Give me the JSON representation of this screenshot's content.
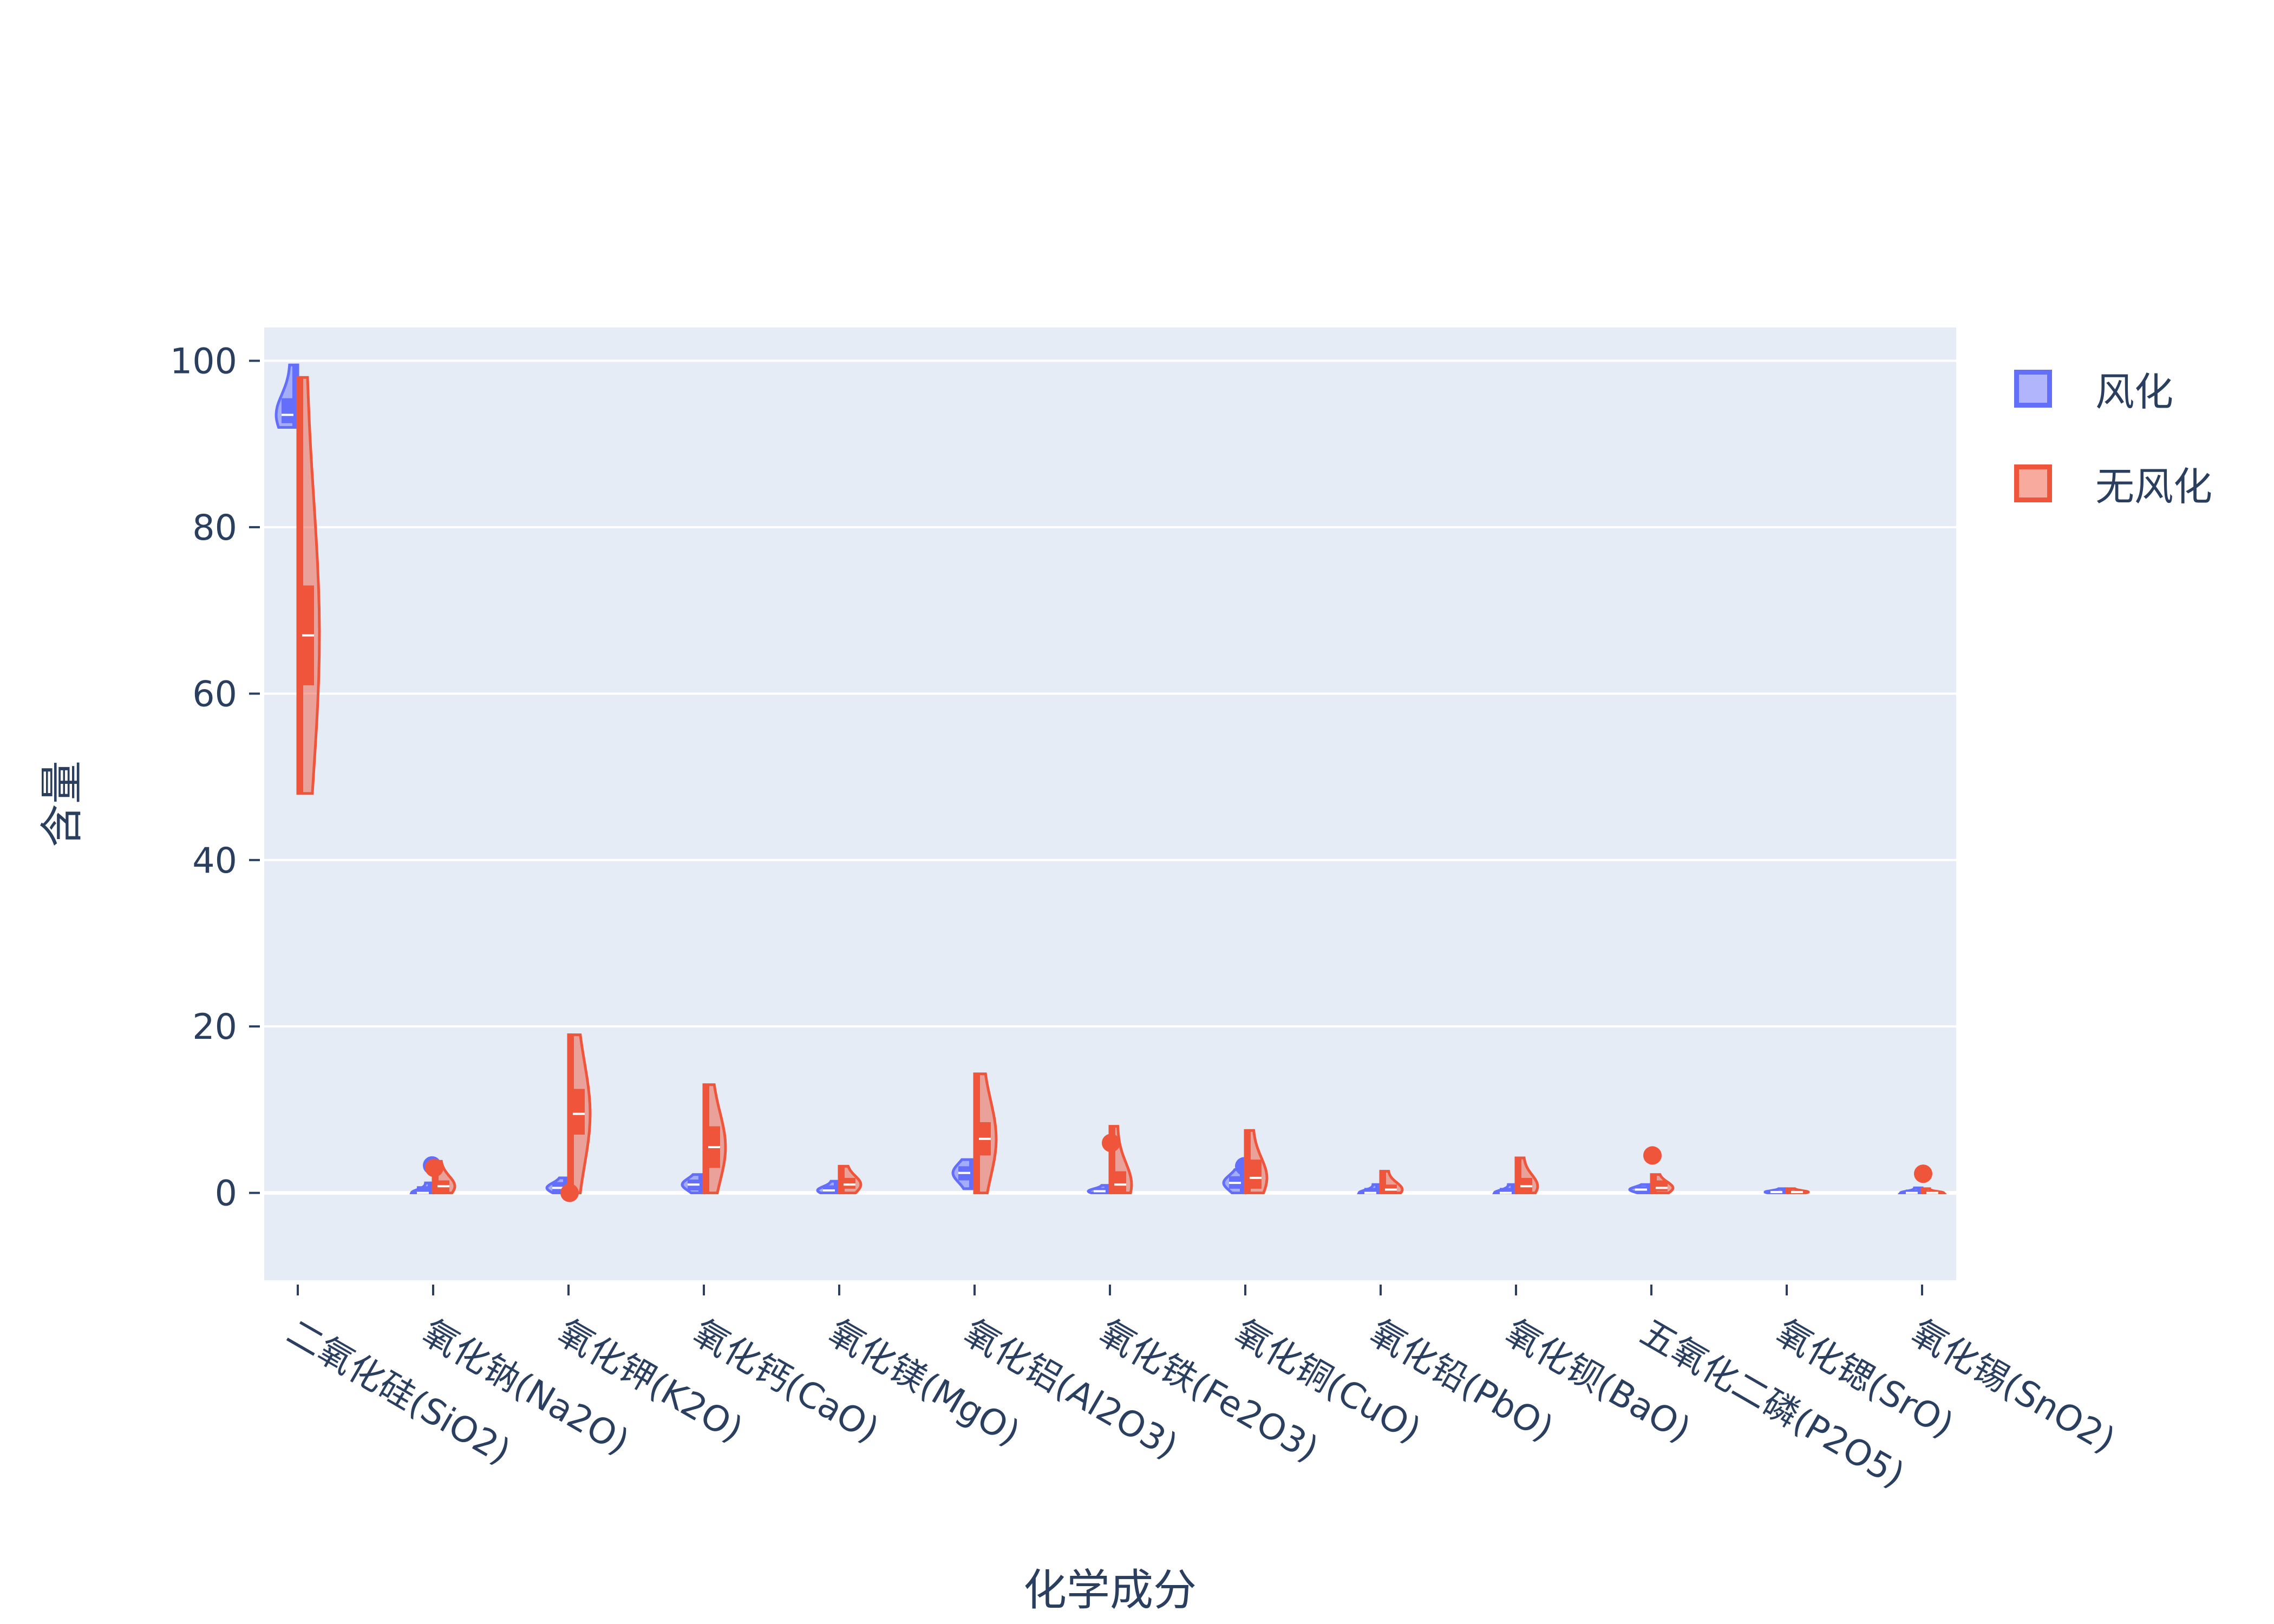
{
  "chart_data": {
    "type": "violin",
    "title": "",
    "xlabel": "化学成分",
    "ylabel": "含量",
    "ylim": [
      -10.5,
      104
    ],
    "yticks": [
      0,
      20,
      40,
      60,
      80,
      100
    ],
    "grid": true,
    "legend_position": "top-right",
    "categories": [
      "二氧化硅(SiO2)",
      "氧化钠(Na2O)",
      "氧化钾(K2O)",
      "氧化钙(CaO)",
      "氧化镁(MgO)",
      "氧化铝(Al2O3)",
      "氧化铁(Fe2O3)",
      "氧化铜(CuO)",
      "氧化铅(PbO)",
      "氧化钡(BaO)",
      "五氧化二磷(P2O5)",
      "氧化锶(SrO)",
      "氧化锡(SnO2)"
    ],
    "series": [
      {
        "name": "风化",
        "color": "#636efa",
        "fill": "rgba(99,110,250,0.5)",
        "side": "negative",
        "values": [
          {
            "min": 92,
            "q1": 92.5,
            "median": 93.5,
            "q3": 95.5,
            "max": 99.5,
            "outliers": []
          },
          {
            "min": 0,
            "q1": 0,
            "median": 0,
            "q3": 0.8,
            "max": 1.2,
            "outliers": [
              3.3
            ]
          },
          {
            "min": 0,
            "q1": 0,
            "median": 0.6,
            "q3": 1.3,
            "max": 1.8,
            "outliers": []
          },
          {
            "min": 0,
            "q1": 0.3,
            "median": 1,
            "q3": 1.6,
            "max": 2.2,
            "outliers": []
          },
          {
            "min": 0,
            "q1": 0,
            "median": 0.3,
            "q3": 0.9,
            "max": 1.4,
            "outliers": []
          },
          {
            "min": 0.5,
            "q1": 1.5,
            "median": 2.4,
            "q3": 3.2,
            "max": 4,
            "outliers": []
          },
          {
            "min": 0,
            "q1": 0,
            "median": 0.2,
            "q3": 0.6,
            "max": 0.9,
            "outliers": []
          },
          {
            "min": 0,
            "q1": 0.5,
            "median": 1.2,
            "q3": 2,
            "max": 2.8,
            "outliers": [
              3.2
            ]
          },
          {
            "min": 0,
            "q1": 0,
            "median": 0,
            "q3": 0.6,
            "max": 1,
            "outliers": []
          },
          {
            "min": 0,
            "q1": 0,
            "median": 0,
            "q3": 0.6,
            "max": 1,
            "outliers": []
          },
          {
            "min": 0,
            "q1": 0.1,
            "median": 0.4,
            "q3": 0.8,
            "max": 1,
            "outliers": []
          },
          {
            "min": 0,
            "q1": 0,
            "median": 0.1,
            "q3": 0.3,
            "max": 0.5,
            "outliers": []
          },
          {
            "min": 0,
            "q1": 0,
            "median": 0,
            "q3": 0.4,
            "max": 0.6,
            "outliers": []
          }
        ]
      },
      {
        "name": "无风化",
        "color": "#ef553b",
        "fill": "rgba(239,85,59,0.5)",
        "side": "positive",
        "values": [
          {
            "min": 48,
            "q1": 61,
            "median": 67,
            "q3": 73,
            "max": 98,
            "outliers": []
          },
          {
            "min": 0,
            "q1": 0,
            "median": 0.8,
            "q3": 1.5,
            "max": 3.8,
            "outliers": [
              3
            ]
          },
          {
            "min": 0,
            "q1": 7,
            "median": 9.5,
            "q3": 12.5,
            "max": 19,
            "outliers": [
              0
            ]
          },
          {
            "min": 0,
            "q1": 3,
            "median": 5.5,
            "q3": 8,
            "max": 13,
            "outliers": []
          },
          {
            "min": 0,
            "q1": 0.5,
            "median": 1,
            "q3": 1.8,
            "max": 3.2,
            "outliers": []
          },
          {
            "min": 0,
            "q1": 4.5,
            "median": 6.5,
            "q3": 8.5,
            "max": 14.3,
            "outliers": []
          },
          {
            "min": 0,
            "q1": 0,
            "median": 1,
            "q3": 2.6,
            "max": 8,
            "outliers": [
              6
            ]
          },
          {
            "min": 0,
            "q1": 0.5,
            "median": 1.8,
            "q3": 4,
            "max": 7.5,
            "outliers": []
          },
          {
            "min": 0,
            "q1": 0,
            "median": 0.4,
            "q3": 1,
            "max": 2.6,
            "outliers": []
          },
          {
            "min": 0,
            "q1": 0,
            "median": 0.8,
            "q3": 1.8,
            "max": 4.2,
            "outliers": []
          },
          {
            "min": 0,
            "q1": 0.2,
            "median": 0.6,
            "q3": 1.5,
            "max": 2.2,
            "outliers": [
              4.5
            ]
          },
          {
            "min": 0,
            "q1": 0,
            "median": 0.1,
            "q3": 0.3,
            "max": 0.5,
            "outliers": []
          },
          {
            "min": 0,
            "q1": 0,
            "median": 0,
            "q3": 0.3,
            "max": 0.5,
            "outliers": [
              2.3
            ]
          }
        ]
      }
    ]
  }
}
